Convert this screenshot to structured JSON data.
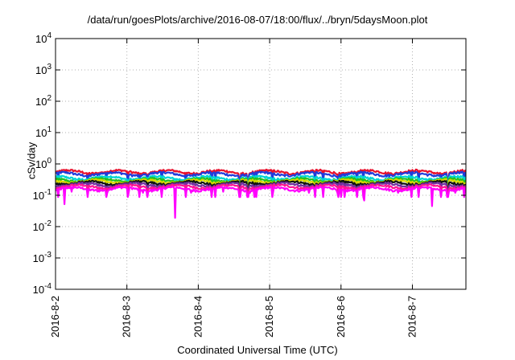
{
  "chart_data": {
    "type": "line",
    "title": "/data/run/goesPlots/archive/2016-08-07/18:00/flux/../bryn/5daysMoon.plot",
    "xlabel": "Coordinated Universal Time (UTC)",
    "ylabel": "cSv/day",
    "y_scale": "log",
    "ylim": [
      0.0001,
      10000
    ],
    "y_ticks": [
      {
        "value": 0.0001,
        "base": "10",
        "exp": "-4"
      },
      {
        "value": 0.001,
        "base": "10",
        "exp": "-3"
      },
      {
        "value": 0.01,
        "base": "10",
        "exp": "-2"
      },
      {
        "value": 0.1,
        "base": "10",
        "exp": "-1"
      },
      {
        "value": 1,
        "base": "10",
        "exp": "0"
      },
      {
        "value": 10,
        "base": "10",
        "exp": "1"
      },
      {
        "value": 100,
        "base": "10",
        "exp": "2"
      },
      {
        "value": 1000,
        "base": "10",
        "exp": "3"
      },
      {
        "value": 10000,
        "base": "10",
        "exp": "4"
      }
    ],
    "xlim": [
      "2016-08-02",
      "2016-08-07 18:00"
    ],
    "x_ticks": [
      {
        "label": "2016-8-2",
        "value": 0
      },
      {
        "label": "2016-8-3",
        "value": 1
      },
      {
        "label": "2016-8-4",
        "value": 2
      },
      {
        "label": "2016-8-5",
        "value": 3
      },
      {
        "label": "2016-8-6",
        "value": 4
      },
      {
        "label": "2016-8-7",
        "value": 5
      }
    ],
    "x_unit": "days from 2016-8-2",
    "x_max": 5.75,
    "grid": true,
    "legend": "none",
    "series": [
      {
        "color": "#e8112d",
        "base": 0.56
      },
      {
        "color": "#1f3ddb",
        "base": 0.48
      },
      {
        "color": "#00d5d5",
        "base": 0.36
      },
      {
        "color": "#20c020",
        "base": 0.31
      },
      {
        "color": "#d8d800",
        "base": 0.28
      },
      {
        "color": "#111111",
        "base": 0.25
      },
      {
        "color": "#7030a0",
        "base": 0.22
      },
      {
        "color": "#ff1493",
        "base": 0.19
      },
      {
        "color": "#ff00ff",
        "base": 0.16
      }
    ],
    "dips": [
      {
        "x": 0.12,
        "value": 0.052
      },
      {
        "x": 0.23,
        "value": 0.13
      },
      {
        "x": 0.72,
        "value": 0.12
      },
      {
        "x": 1.02,
        "value": 0.12
      },
      {
        "x": 1.22,
        "value": 0.12
      },
      {
        "x": 1.35,
        "value": 0.13
      },
      {
        "x": 1.68,
        "value": 0.019
      },
      {
        "x": 1.9,
        "value": 0.12
      },
      {
        "x": 2.35,
        "value": 0.13
      },
      {
        "x": 2.72,
        "value": 0.12
      },
      {
        "x": 3.05,
        "value": 0.13
      },
      {
        "x": 3.55,
        "value": 0.12
      },
      {
        "x": 3.95,
        "value": 0.12
      },
      {
        "x": 4.33,
        "value": 0.068
      },
      {
        "x": 4.8,
        "value": 0.12
      },
      {
        "x": 5.27,
        "value": 0.045
      },
      {
        "x": 5.6,
        "value": 0.12
      }
    ]
  }
}
